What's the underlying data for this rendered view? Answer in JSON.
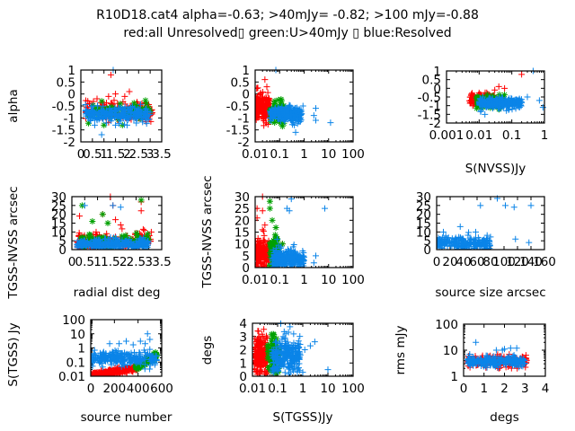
{
  "title": {
    "line1": "R10D18.cat4 alpha=-0.63; >40mJy= -0.82; >100 mJy=-0.88",
    "line2": "red:all Unresolved▯ green:U>40mJy ▯ blue:Resolved"
  },
  "colors": {
    "red": "#ff0000",
    "green": "#00a000",
    "blue": "#0a84e8",
    "frame": "#000000"
  },
  "chart_data": [
    {
      "id": "alpha-vs-radial",
      "type": "scatter",
      "xlabel": "",
      "ylabel": "alpha",
      "xscale": "linear",
      "yscale": "linear",
      "xlim": [
        0,
        3.5
      ],
      "ylim": [
        -2,
        1
      ],
      "xticks": [
        "0",
        "0.5",
        "1",
        "1.5",
        "2",
        "2.5",
        "3",
        "3.5"
      ],
      "yticks": [
        "-2",
        "-1.5",
        "-1",
        "-0.5",
        "0",
        "0.5",
        "1"
      ],
      "series": [
        {
          "name": "red",
          "clusters": [
            {
              "x": [
                0.2,
                3.1
              ],
              "y": [
                -1.1,
                -0.3
              ],
              "n": 160
            }
          ],
          "outliers": [
            [
              1.3,
              0.8
            ],
            [
              1.5,
              0
            ],
            [
              1.9,
              -0.1
            ],
            [
              2.1,
              0.1
            ],
            [
              0.3,
              -0.3
            ],
            [
              1.2,
              -0.1
            ],
            [
              0.7,
              -0.2
            ]
          ]
        },
        {
          "name": "green",
          "clusters": [
            {
              "x": [
                0.3,
                3.0
              ],
              "y": [
                -1.0,
                -0.4
              ],
              "n": 80
            }
          ],
          "outliers": [
            [
              1.0,
              -1.3
            ],
            [
              1.8,
              -1.3
            ]
          ]
        },
        {
          "name": "blue",
          "clusters": [
            {
              "x": [
                0.2,
                3.0
              ],
              "y": [
                -1.15,
                -0.55
              ],
              "n": 260
            }
          ],
          "outliers": [
            [
              1.4,
              1.0
            ],
            [
              0.9,
              -1.7
            ],
            [
              0.6,
              -1.3
            ],
            [
              1.5,
              -1.3
            ],
            [
              2.0,
              -1.3
            ]
          ]
        }
      ]
    },
    {
      "id": "alpha-vs-stgss",
      "type": "scatter",
      "xlabel": "",
      "ylabel": "alpha",
      "xscale": "log",
      "yscale": "linear",
      "xlim": [
        0.01,
        100
      ],
      "ylim": [
        -2,
        1
      ],
      "xticks": [
        "0.01",
        "0.1",
        "1",
        "10",
        "100"
      ],
      "yticks": [
        "-2",
        "-1.5",
        "-1",
        "-0.5",
        "0",
        "0.5",
        "1"
      ],
      "series": [
        {
          "name": "red",
          "clusters": [
            {
              "x": [
                0.01,
                0.04
              ],
              "y": [
                -1.1,
                -0.05
              ],
              "n": 220
            }
          ],
          "outliers": [
            [
              0.025,
              0.6
            ],
            [
              0.012,
              0.25
            ],
            [
              0.03,
              0.3
            ],
            [
              0.13,
              -0.55
            ]
          ]
        },
        {
          "name": "green",
          "clusters": [
            {
              "x": [
                0.04,
                0.15
              ],
              "y": [
                -1.2,
                -0.3
              ],
              "n": 80
            }
          ],
          "outliers": [
            [
              0.13,
              -1.35
            ]
          ]
        },
        {
          "name": "blue",
          "clusters": [
            {
              "x": [
                0.04,
                0.8
              ],
              "y": [
                -1.15,
                -0.55
              ],
              "n": 260
            }
          ],
          "outliers": [
            [
              0.07,
              1.0
            ],
            [
              0.9,
              -0.5
            ],
            [
              3,
              -0.6
            ],
            [
              3,
              -1.1
            ],
            [
              12,
              -1.2
            ],
            [
              0.45,
              -1.6
            ],
            [
              0.4,
              -1.3
            ],
            [
              2.5,
              -0.9
            ]
          ]
        }
      ]
    },
    {
      "id": "alpha-vs-snvss",
      "type": "scatter",
      "xlabel": "S(NVSS)Jy",
      "ylabel": "",
      "xscale": "log",
      "yscale": "linear",
      "xlim": [
        0.001,
        1
      ],
      "ylim": [
        -2,
        1
      ],
      "xticks": [
        "0.001",
        "0.01",
        "0.1",
        "1"
      ],
      "yticks": [
        "-2",
        "-1.5",
        "-1",
        "-0.5",
        "0",
        "0.5",
        "1"
      ],
      "series": [
        {
          "name": "red",
          "clusters": [
            {
              "x": [
                0.005,
                0.03
              ],
              "y": [
                -1.0,
                -0.3
              ],
              "n": 170
            }
          ],
          "outliers": [
            [
              0.04,
              0.1
            ],
            [
              0.06,
              0.0
            ],
            [
              0.2,
              0.8
            ],
            [
              0.03,
              -0.1
            ]
          ]
        },
        {
          "name": "green",
          "clusters": [
            {
              "x": [
                0.008,
                0.06
              ],
              "y": [
                -1.1,
                -0.4
              ],
              "n": 80
            }
          ],
          "outliers": []
        },
        {
          "name": "blue",
          "clusters": [
            {
              "x": [
                0.01,
                0.2
              ],
              "y": [
                -1.15,
                -0.55
              ],
              "n": 240
            }
          ],
          "outliers": [
            [
              0.45,
              1.0
            ],
            [
              0.3,
              -0.5
            ],
            [
              0.7,
              -0.7
            ],
            [
              0.9,
              -1.1
            ],
            [
              0.015,
              -1.5
            ]
          ]
        }
      ]
    },
    {
      "id": "offset-vs-radial",
      "type": "scatter",
      "xlabel": "radial dist deg",
      "ylabel": "TGSS-NVSS arcsec",
      "xscale": "linear",
      "yscale": "linear",
      "xlim": [
        0,
        3.5
      ],
      "ylim": [
        0,
        30
      ],
      "xticks": [
        "0",
        "0.5",
        "1",
        "1.5",
        "2",
        "2.5",
        "3",
        "3.5"
      ],
      "yticks": [
        "0",
        "5",
        "10",
        "15",
        "20",
        "25",
        "30"
      ],
      "series": [
        {
          "name": "red",
          "clusters": [
            {
              "x": [
                0.2,
                3.1
              ],
              "y": [
                0,
                10
              ],
              "n": 160
            }
          ],
          "outliers": [
            [
              0.3,
              19
            ],
            [
              1.5,
              30
            ],
            [
              1.6,
              25
            ],
            [
              2.7,
              27
            ],
            [
              2.7,
              22
            ],
            [
              1.2,
              20
            ],
            [
              1.7,
              17
            ],
            [
              1.9,
              14
            ]
          ]
        },
        {
          "name": "green",
          "clusters": [
            {
              "x": [
                0.3,
                3.0
              ],
              "y": [
                0,
                9
              ],
              "n": 80
            }
          ],
          "outliers": [
            [
              0.4,
              25
            ],
            [
              1.2,
              20
            ],
            [
              0.8,
              16
            ],
            [
              1.4,
              15
            ],
            [
              2.7,
              28
            ]
          ]
        },
        {
          "name": "blue",
          "clusters": [
            {
              "x": [
                0.2,
                3.0
              ],
              "y": [
                0,
                6
              ],
              "n": 280
            }
          ],
          "outliers": [
            [
              0.5,
              25
            ],
            [
              1.6,
              25
            ],
            [
              1.9,
              24
            ]
          ]
        }
      ]
    },
    {
      "id": "offset-vs-stgss",
      "type": "scatter",
      "xlabel": "",
      "ylabel": "TGSS-NVSS arcsec",
      "xscale": "log",
      "yscale": "linear",
      "xlim": [
        0.01,
        100
      ],
      "ylim": [
        0,
        30
      ],
      "xticks": [
        "0.01",
        "0.1",
        "1",
        "10",
        "100"
      ],
      "yticks": [
        "0",
        "5",
        "10",
        "15",
        "20",
        "25",
        "30"
      ],
      "series": [
        {
          "name": "red",
          "clusters": [
            {
              "x": [
                0.01,
                0.04
              ],
              "y": [
                0,
                12
              ],
              "n": 200
            }
          ],
          "outliers": [
            [
              0.02,
              30
            ],
            [
              0.012,
              25
            ],
            [
              0.02,
              24
            ],
            [
              0.012,
              21
            ],
            [
              0.025,
              18
            ],
            [
              0.02,
              16
            ],
            [
              0.13,
              10
            ]
          ]
        },
        {
          "name": "green",
          "clusters": [
            {
              "x": [
                0.04,
                0.1
              ],
              "y": [
                0,
                15
              ],
              "n": 70
            }
          ],
          "outliers": [
            [
              0.04,
              28
            ],
            [
              0.04,
              25
            ],
            [
              0.05,
              20
            ],
            [
              0.13,
              10
            ]
          ]
        },
        {
          "name": "blue",
          "clusters": [
            {
              "x": [
                0.05,
                1.0
              ],
              "y": [
                0,
                8
              ],
              "n": 260
            }
          ],
          "outliers": [
            [
              0.3,
              29
            ],
            [
              0.2,
              25
            ],
            [
              0.25,
              24
            ],
            [
              7,
              25
            ],
            [
              3,
              5
            ],
            [
              2.5,
              2
            ],
            [
              0.08,
              12
            ]
          ]
        }
      ]
    },
    {
      "id": "offset-vs-size",
      "type": "scatter",
      "xlabel": "source size arcsec",
      "ylabel": "",
      "xscale": "linear",
      "yscale": "linear",
      "xlim": [
        0,
        160
      ],
      "ylim": [
        0,
        30
      ],
      "xticks": [
        "0",
        "20",
        "40",
        "60",
        "80",
        "100",
        "120",
        "140",
        "160"
      ],
      "yticks": [
        "0",
        "5",
        "10",
        "15",
        "20",
        "25",
        "30"
      ],
      "series": [
        {
          "name": "blue",
          "clusters": [
            {
              "x": [
                0,
                80
              ],
              "y": [
                0,
                7
              ],
              "n": 220
            }
          ],
          "outliers": [
            [
              65,
              25
            ],
            [
              90,
              29
            ],
            [
              102,
              25
            ],
            [
              115,
              24
            ],
            [
              140,
              25
            ],
            [
              117,
              6
            ],
            [
              137,
              4
            ],
            [
              35,
              13
            ],
            [
              10,
              10
            ],
            [
              58,
              10
            ]
          ]
        }
      ]
    },
    {
      "id": "stgss-vs-index",
      "type": "scatter",
      "xlabel": "source number",
      "ylabel": "S(TGSS) Jy",
      "xscale": "linear",
      "yscale": "log",
      "xlim": [
        0,
        600
      ],
      "ylim": [
        0.01,
        100
      ],
      "xticks": [
        "0",
        "200",
        "400",
        "600"
      ],
      "yticks": [
        "0.01",
        "0.1",
        "1",
        "10",
        "100"
      ],
      "series": [
        {
          "name": "red",
          "trend": {
            "x": [
              0,
              400
            ],
            "y0": 0.011,
            "y1": 0.04,
            "spread": 1.6
          },
          "n": 300,
          "outliers": []
        },
        {
          "name": "green",
          "trend": {
            "x": [
              380,
              560
            ],
            "y0": 0.04,
            "y1": 0.3,
            "spread": 1.8
          },
          "n": 100,
          "outliers": []
        },
        {
          "name": "blue",
          "clusters": [
            {
              "x": [
                0,
                560
              ],
              "y": [
                0.06,
                0.6
              ],
              "logy": true,
              "n": 250
            }
          ],
          "outliers": [
            [
              480,
              10
            ],
            [
              420,
              3
            ],
            [
              460,
              2
            ],
            [
              240,
              2
            ],
            [
              300,
              3
            ],
            [
              500,
              4
            ],
            [
              160,
              2
            ]
          ]
        }
      ]
    },
    {
      "id": "radial-vs-stgss",
      "type": "scatter",
      "xlabel": "S(TGSS)Jy",
      "ylabel": "degs",
      "xscale": "log",
      "yscale": "linear",
      "xlim": [
        0.01,
        100
      ],
      "ylim": [
        0,
        4
      ],
      "xticks": [
        "0.01",
        "0.1",
        "1",
        "10",
        "100"
      ],
      "yticks": [
        "0",
        "1",
        "2",
        "3",
        "4"
      ],
      "series": [
        {
          "name": "red",
          "clusters": [
            {
              "x": [
                0.012,
                0.04
              ],
              "y": [
                0,
                3.1
              ],
              "n": 220
            }
          ],
          "outliers": []
        },
        {
          "name": "green",
          "clusters": [
            {
              "x": [
                0.04,
                0.12
              ],
              "y": [
                0,
                3.1
              ],
              "n": 80
            }
          ],
          "outliers": []
        },
        {
          "name": "blue",
          "clusters": [
            {
              "x": [
                0.06,
                0.8
              ],
              "y": [
                0,
                3.0
              ],
              "n": 260
            }
          ],
          "outliers": [
            [
              3,
              2.6
            ],
            [
              2,
              2.3
            ],
            [
              1.2,
              2
            ],
            [
              1,
              0.3
            ],
            [
              10,
              0.5
            ],
            [
              0.8,
              1.6
            ]
          ]
        }
      ]
    },
    {
      "id": "rms-vs-radial",
      "type": "scatter",
      "xlabel": "degs",
      "ylabel": "rms mJy",
      "xscale": "linear",
      "yscale": "log",
      "xlim": [
        0,
        4
      ],
      "ylim": [
        1,
        100
      ],
      "xticks": [
        "0",
        "1",
        "2",
        "3",
        "4"
      ],
      "yticks": [
        "1",
        "10",
        "100"
      ],
      "series": [
        {
          "name": "red",
          "clusters": [
            {
              "x": [
                0.2,
                3.1
              ],
              "y": [
                2.2,
                6
              ],
              "logy": true,
              "n": 200
            }
          ],
          "outliers": []
        },
        {
          "name": "blue",
          "clusters": [
            {
              "x": [
                0.2,
                3.0
              ],
              "y": [
                2.5,
                5.5
              ],
              "logy": true,
              "n": 240
            }
          ],
          "outliers": [
            [
              0.6,
              20
            ],
            [
              0.3,
              7
            ],
            [
              1.6,
              10
            ],
            [
              2.0,
              11
            ],
            [
              2.3,
              12
            ],
            [
              2.6,
              12
            ],
            [
              1.9,
              10
            ]
          ]
        }
      ]
    }
  ]
}
